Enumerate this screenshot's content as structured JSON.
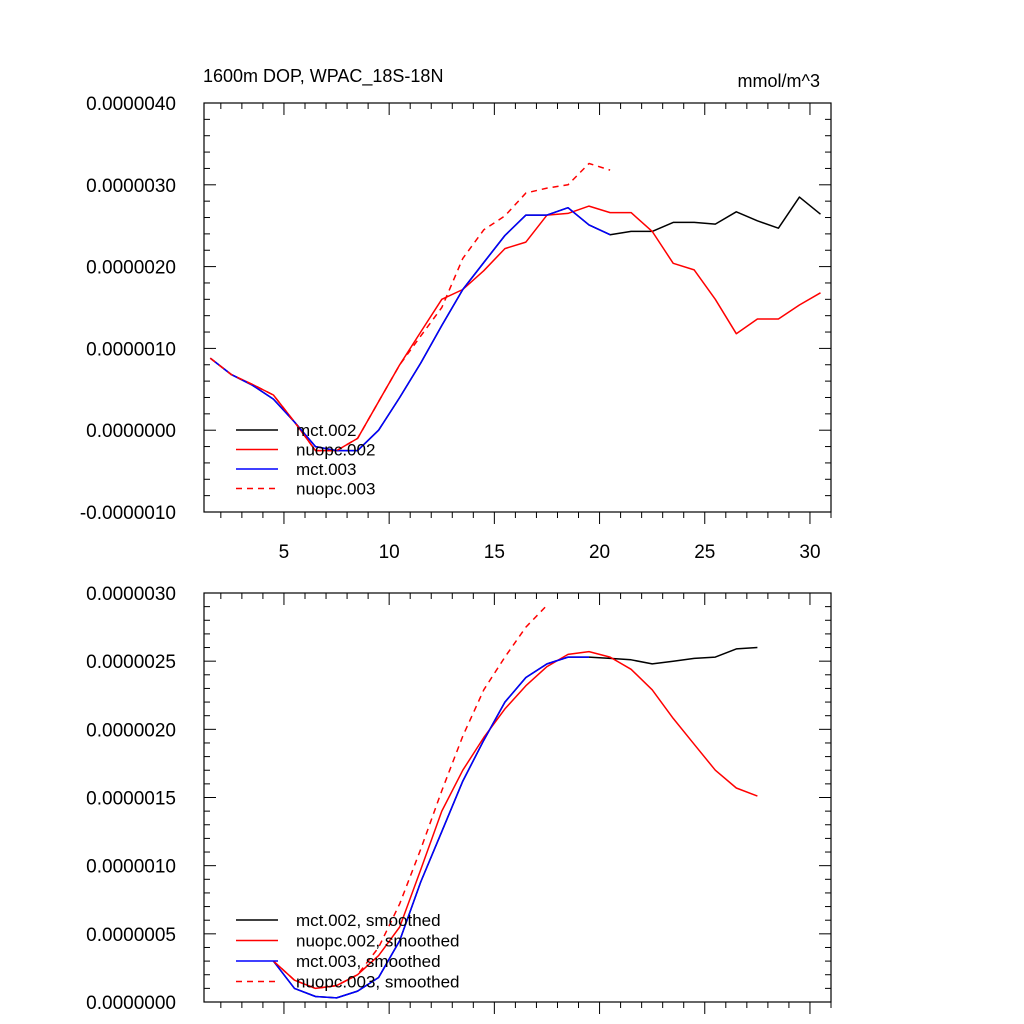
{
  "chart_data": [
    {
      "type": "line",
      "title": "1600m DOP, WPAC_18S-18N",
      "units": "mmol/m^3",
      "xlim": [
        1.2,
        31
      ],
      "ylim": [
        -1e-06,
        4e-06
      ],
      "xticks": [
        5,
        10,
        15,
        20,
        25,
        30
      ],
      "yticks": [
        "0.0000040",
        "0.0000030",
        "0.0000020",
        "0.0000010",
        "0.0000000",
        "-0.0000010"
      ],
      "legend_position": "bottom-left",
      "series": [
        {
          "name": "mct.002",
          "color": "#000000",
          "dash": "solid",
          "x": [
            1.5,
            2.5,
            3.5,
            4.5,
            5.5,
            6.5,
            7.5,
            8.5,
            9.5,
            10.5,
            11.5,
            12.5,
            13.5,
            14.5,
            15.5,
            16.5,
            17.5,
            18.5,
            19.5,
            20.5,
            21.5,
            22.5,
            23.5,
            24.5,
            25.5,
            26.5,
            27.5,
            28.5,
            29.5,
            30.5
          ],
          "y": [
            8.8e-07,
            6.8e-07,
            5.5e-07,
            3.8e-07,
            1e-07,
            -2e-07,
            -2.5e-07,
            -2.5e-07,
            0.0,
            4e-07,
            8.2e-07,
            1.28e-06,
            1.72e-06,
            2.05e-06,
            2.38e-06,
            2.63e-06,
            2.63e-06,
            2.72e-06,
            2.51e-06,
            2.39e-06,
            2.43e-06,
            2.43e-06,
            2.54e-06,
            2.54e-06,
            2.52e-06,
            2.67e-06,
            2.56e-06,
            2.47e-06,
            2.85e-06,
            2.64e-06
          ]
        },
        {
          "name": "nuopc.002",
          "color": "#ff0000",
          "dash": "solid",
          "x": [
            1.5,
            2.5,
            3.5,
            4.5,
            5.5,
            6.5,
            7.5,
            8.5,
            9.5,
            10.5,
            11.5,
            12.5,
            13.5,
            14.5,
            15.5,
            16.5,
            17.5,
            18.5,
            19.5,
            20.5,
            21.5,
            22.5,
            23.5,
            24.5,
            25.5,
            26.5,
            27.5,
            28.5,
            29.5,
            30.5
          ],
          "y": [
            8.8e-07,
            6.8e-07,
            5.6e-07,
            4.3e-07,
            1e-07,
            -2.5e-07,
            -2.5e-07,
            -1e-07,
            3.5e-07,
            8e-07,
            1.2e-06,
            1.6e-06,
            1.72e-06,
            1.95e-06,
            2.22e-06,
            2.3e-06,
            2.63e-06,
            2.65e-06,
            2.74e-06,
            2.66e-06,
            2.66e-06,
            2.43e-06,
            2.04e-06,
            1.96e-06,
            1.6e-06,
            1.18e-06,
            1.36e-06,
            1.36e-06,
            1.53e-06,
            1.68e-06
          ]
        },
        {
          "name": "mct.003",
          "color": "#0000ff",
          "dash": "solid",
          "x": [
            1.5,
            2.5,
            3.5,
            4.5,
            5.5,
            6.5,
            7.5,
            8.5,
            9.5,
            10.5,
            11.5,
            12.5,
            13.5,
            14.5,
            15.5,
            16.5,
            17.5,
            18.5,
            19.5,
            20.5
          ],
          "y": [
            8.8e-07,
            6.8e-07,
            5.5e-07,
            3.8e-07,
            1e-07,
            -2e-07,
            -2.5e-07,
            -2.5e-07,
            0.0,
            4e-07,
            8.2e-07,
            1.28e-06,
            1.72e-06,
            2.05e-06,
            2.38e-06,
            2.63e-06,
            2.63e-06,
            2.72e-06,
            2.51e-06,
            2.39e-06
          ]
        },
        {
          "name": "nuopc.003",
          "color": "#ff0000",
          "dash": "dashed",
          "x": [
            1.5,
            2.5,
            3.5,
            4.5,
            5.5,
            6.5,
            7.5,
            8.5,
            9.5,
            10.5,
            11.5,
            12.5,
            13.5,
            14.5,
            15.5,
            16.5,
            17.5,
            18.5,
            19.5,
            20.5
          ],
          "y": [
            8.8e-07,
            6.8e-07,
            5.6e-07,
            4.3e-07,
            1e-07,
            -2.5e-07,
            -2.5e-07,
            -1e-07,
            3.5e-07,
            8e-07,
            1.15e-06,
            1.5e-06,
            2.1e-06,
            2.45e-06,
            2.62e-06,
            2.9e-06,
            2.96e-06,
            3e-06,
            3.26e-06,
            3.18e-06
          ]
        }
      ]
    },
    {
      "type": "line",
      "xlim": [
        1.2,
        31
      ],
      "ylim": [
        0,
        3e-06
      ],
      "xticks": [
        5,
        10,
        15,
        20,
        25,
        30
      ],
      "yticks": [
        "0.0000030",
        "0.0000025",
        "0.0000020",
        "0.0000015",
        "0.0000010",
        "0.0000005",
        "0.0000000"
      ],
      "legend_position": "bottom-left",
      "series": [
        {
          "name": "mct.002, smoothed",
          "color": "#000000",
          "dash": "solid",
          "x": [
            4.5,
            5.5,
            6.5,
            7.5,
            8.5,
            9.5,
            10.5,
            11.5,
            12.5,
            13.5,
            14.5,
            15.5,
            16.5,
            17.5,
            18.5,
            19.5,
            20.5,
            21.5,
            22.5,
            23.5,
            24.5,
            25.5,
            26.5,
            27.5
          ],
          "y": [
            3e-07,
            1e-07,
            4e-08,
            3e-08,
            8e-08,
            1.8e-07,
            4.5e-07,
            8.8e-07,
            1.25e-06,
            1.62e-06,
            1.92e-06,
            2.2e-06,
            2.38e-06,
            2.48e-06,
            2.53e-06,
            2.53e-06,
            2.52e-06,
            2.51e-06,
            2.48e-06,
            2.5e-06,
            2.52e-06,
            2.53e-06,
            2.59e-06,
            2.6e-06
          ]
        },
        {
          "name": "nuopc.002, smoothed",
          "color": "#ff0000",
          "dash": "solid",
          "x": [
            4.5,
            5.5,
            6.5,
            7.5,
            8.5,
            9.5,
            10.5,
            11.5,
            12.5,
            13.5,
            14.5,
            15.5,
            16.5,
            17.5,
            18.5,
            19.5,
            20.5,
            21.5,
            22.5,
            23.5,
            24.5,
            25.5,
            26.5,
            27.5
          ],
          "y": [
            3e-07,
            1.6e-07,
            1e-07,
            1.2e-07,
            2e-07,
            3.4e-07,
            5.5e-07,
            9.7e-07,
            1.4e-06,
            1.7e-06,
            1.94e-06,
            2.15e-06,
            2.32e-06,
            2.46e-06,
            2.55e-06,
            2.57e-06,
            2.53e-06,
            2.44e-06,
            2.29e-06,
            2.08e-06,
            1.89e-06,
            1.7e-06,
            1.57e-06,
            1.51e-06
          ]
        },
        {
          "name": "mct.003, smoothed",
          "color": "#0000ff",
          "dash": "solid",
          "x": [
            4.5,
            5.5,
            6.5,
            7.5,
            8.5,
            9.5,
            10.5,
            11.5,
            12.5,
            13.5,
            14.5,
            15.5,
            16.5,
            17.5,
            18.5,
            19.5
          ],
          "y": [
            3e-07,
            1e-07,
            4e-08,
            3e-08,
            8e-08,
            1.8e-07,
            4.5e-07,
            8.8e-07,
            1.25e-06,
            1.62e-06,
            1.92e-06,
            2.2e-06,
            2.38e-06,
            2.48e-06,
            2.53e-06,
            2.53e-06
          ]
        },
        {
          "name": "nuopc.003, smoothed",
          "color": "#ff0000",
          "dash": "dashed",
          "x": [
            4.5,
            5.5,
            6.5,
            7.5,
            8.5,
            9.5,
            10.5,
            11.5,
            12.5,
            13.5,
            14.5,
            15.5,
            16.5,
            17.5
          ],
          "y": [
            3e-07,
            1.6e-07,
            1e-07,
            1.2e-07,
            2e-07,
            4e-07,
            7.2e-07,
            1.12e-06,
            1.55e-06,
            1.95e-06,
            2.29e-06,
            2.53e-06,
            2.75e-06,
            2.91e-06
          ]
        }
      ]
    }
  ]
}
